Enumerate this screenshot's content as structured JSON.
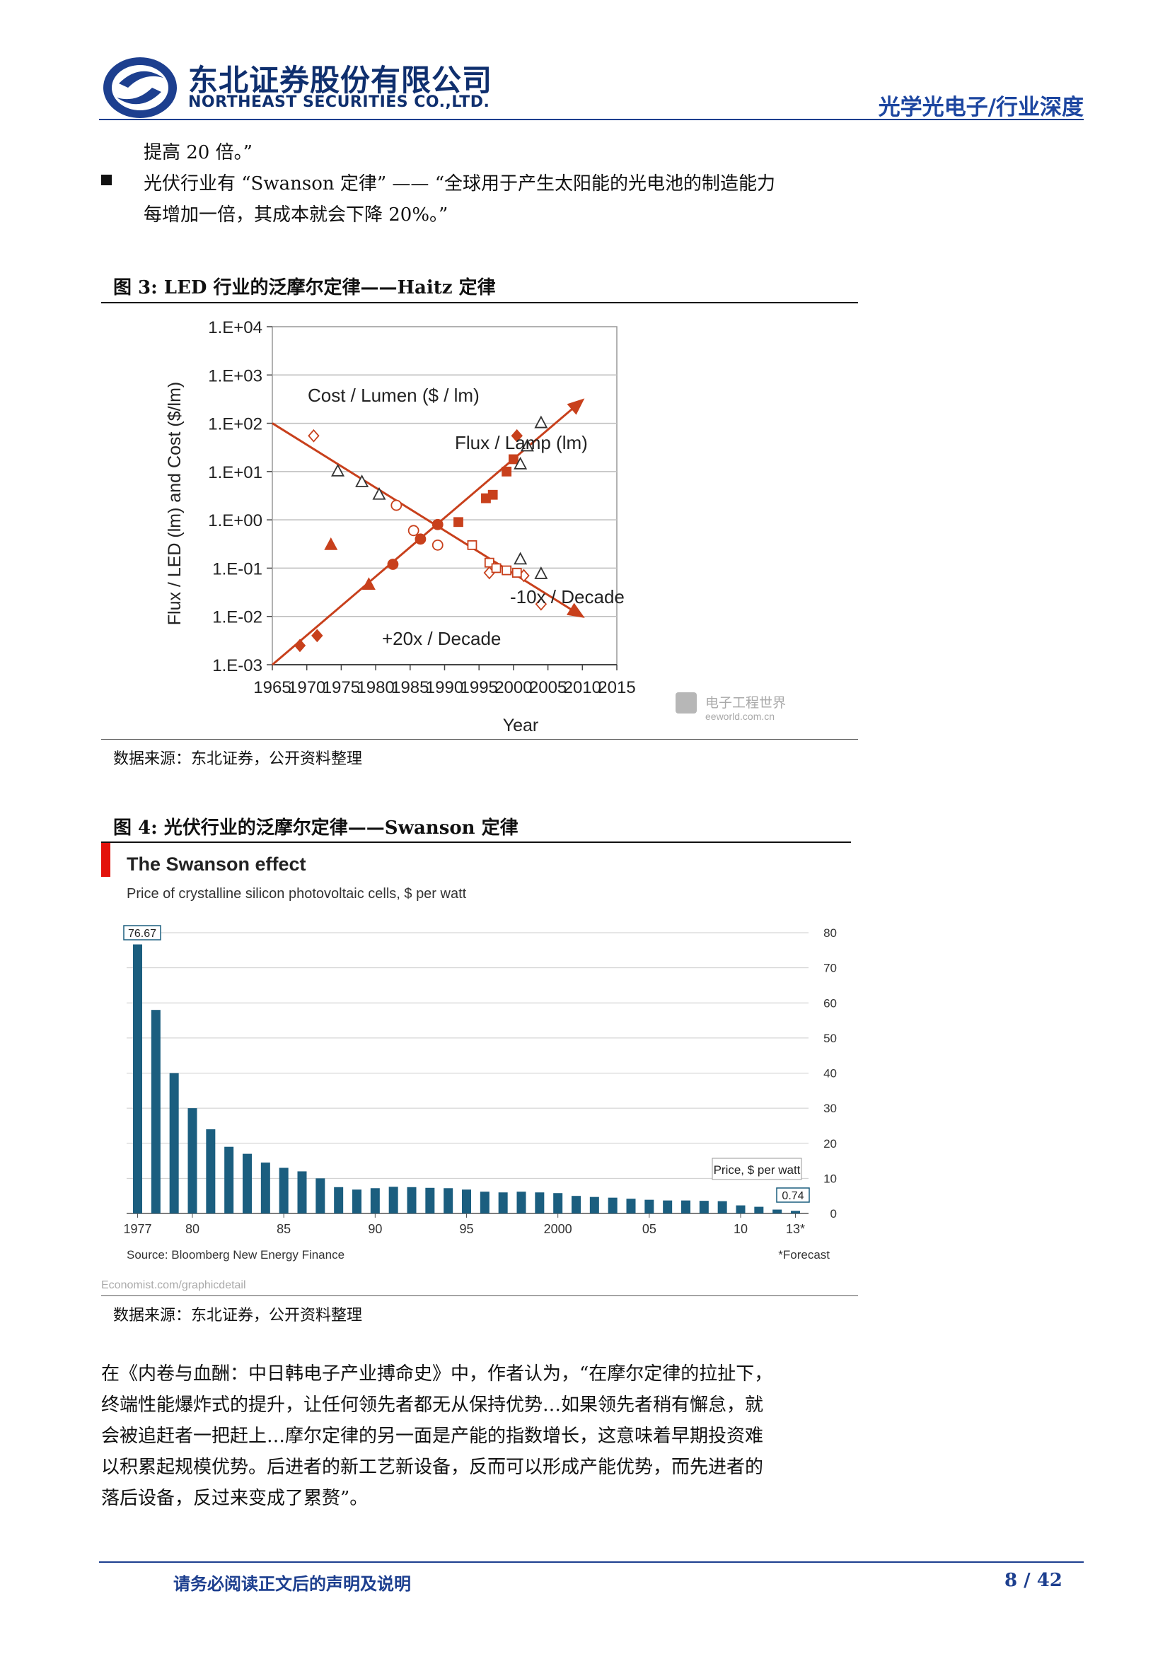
{
  "header": {
    "company_cn": "东北证券股份有限公司",
    "company_en": "NORTHEAST SECURITIES CO.,LTD.",
    "category": "光学光电子/行业深度"
  },
  "intro": {
    "line1": "提高 20 倍。”",
    "bullet_line1": "光伏行业有 “Swanson 定律” —— “全球用于产生太阳能的光电池的制造能力",
    "bullet_line2": "每增加一倍，其成本就会下降 20%。”"
  },
  "figure3": {
    "caption": "图 3:  LED 行业的泛摩尔定律——Haitz 定律",
    "source": "数据来源：东北证券，公开资料整理",
    "watermark_cn": "电子工程世界",
    "watermark_en": "eeworld.com.cn"
  },
  "figure4": {
    "caption": "图 4:  光伏行业的泛摩尔定律——Swanson 定律",
    "source": "数据来源：东北证券，公开资料整理",
    "credit": "Economist.com/graphicdetail"
  },
  "closing": {
    "lines": [
      "在《内卷与血酬：中日韩电子产业搏命史》中，作者认为，“在摩尔定律的拉扯下，",
      "终端性能爆炸式的提升，让任何领先者都无从保持优势…如果领先者稍有懈怠，就",
      "会被追赶者一把赶上…摩尔定律的另一面是产能的指数增长，这意味着早期投资难",
      "以积累起规模优势。后进者的新工艺新设备，反而可以形成产能优势，而先进者的",
      "落后设备，反过来变成了累赘”。"
    ]
  },
  "footer": {
    "notice": "请务必阅读正文后的声明及说明",
    "page": "8 / 42"
  },
  "colors": {
    "brand_blue": "#1d3f8f",
    "trend_red": "#c8401c",
    "bar_blue": "#1b5e7f"
  },
  "chart_data": [
    {
      "type": "scatter",
      "title": "",
      "xlabel": "Year",
      "ylabel": "Flux / LED  (lm) and Cost  ($/lm)",
      "y_scale": "log",
      "xlim": [
        1965,
        2015
      ],
      "ylim": [
        0.001,
        10000
      ],
      "x_ticks": [
        "1965",
        "1970",
        "1975",
        "1980",
        "1985",
        "1990",
        "1995",
        "2000",
        "2005",
        "2010",
        "2015"
      ],
      "y_ticks": [
        "1.E-03",
        "1.E-02",
        "1.E-01",
        "1.E+00",
        "1.E+01",
        "1.E+02",
        "1.E+03",
        "1.E+04"
      ],
      "grid": true,
      "annotations": [
        "Cost / Lumen  ($ / lm)",
        "Flux / Lamp (lm)",
        "-10x / Decade",
        "+20x / Decade"
      ],
      "trend_lines": [
        {
          "points": [
            [
              1965,
              0.001
            ],
            [
              2010,
              300
            ]
          ]
        },
        {
          "points": [
            [
              1965,
              100
            ],
            [
              2010,
              0.01
            ]
          ]
        }
      ],
      "series": [
        {
          "marker": "filled-diamond",
          "points": [
            [
              1969,
              0.0025
            ],
            [
              1971.5,
              0.004
            ],
            [
              2000.5,
              55
            ]
          ]
        },
        {
          "marker": "filled-triangle",
          "points": [
            [
              1973.5,
              0.3
            ],
            [
              1979,
              0.045
            ]
          ]
        },
        {
          "marker": "filled-circle",
          "points": [
            [
              1982.5,
              0.12
            ],
            [
              1986.5,
              0.4
            ],
            [
              1989,
              0.8
            ]
          ]
        },
        {
          "marker": "filled-square",
          "points": [
            [
              1992,
              0.9
            ],
            [
              1996,
              2.8
            ],
            [
              1997,
              3.3
            ],
            [
              1999,
              10
            ],
            [
              2000,
              18
            ]
          ]
        },
        {
          "marker": "open-diamond",
          "points": [
            [
              1971,
              55
            ],
            [
              1996.5,
              0.08
            ],
            [
              2001.5,
              0.07
            ],
            [
              2004,
              0.018
            ]
          ]
        },
        {
          "marker": "open-triangle",
          "points": [
            [
              1974.5,
              10
            ],
            [
              1978,
              6
            ],
            [
              1980.5,
              3.3
            ],
            [
              2001,
              14
            ],
            [
              2002,
              33
            ],
            [
              2004,
              100
            ],
            [
              2001,
              0.15
            ],
            [
              2004,
              0.075
            ]
          ]
        },
        {
          "marker": "open-circle",
          "points": [
            [
              1983,
              2
            ],
            [
              1985.5,
              0.6
            ],
            [
              1989,
              0.3
            ]
          ]
        },
        {
          "marker": "open-square",
          "points": [
            [
              1994,
              0.3
            ],
            [
              1996.5,
              0.13
            ],
            [
              1997.5,
              0.1
            ],
            [
              1999,
              0.09
            ],
            [
              2000.5,
              0.08
            ]
          ]
        }
      ]
    },
    {
      "type": "bar",
      "title": "The Swanson effect",
      "subtitle": "Price of crystalline silicon photovoltaic cells, $ per watt",
      "source_note": "Source: Bloomberg New Energy Finance",
      "forecast_note": "*Forecast",
      "legend_label": "Price, $ per watt",
      "ylim": [
        0,
        80
      ],
      "y_ticks": [
        "0",
        "10",
        "20",
        "30",
        "40",
        "50",
        "60",
        "70",
        "80"
      ],
      "x_tick_labels": [
        {
          "year": 1977,
          "label": "1977"
        },
        {
          "year": 1980,
          "label": "80"
        },
        {
          "year": 1985,
          "label": "85"
        },
        {
          "year": 1990,
          "label": "90"
        },
        {
          "year": 1995,
          "label": "95"
        },
        {
          "year": 2000,
          "label": "2000"
        },
        {
          "year": 2005,
          "label": "05"
        },
        {
          "year": 2010,
          "label": "10"
        },
        {
          "year": 2013,
          "label": "13*"
        }
      ],
      "first_label": "76.67",
      "last_label": "0.74",
      "years": [
        1977,
        1978,
        1979,
        1980,
        1981,
        1982,
        1983,
        1984,
        1985,
        1986,
        1987,
        1988,
        1989,
        1990,
        1991,
        1992,
        1993,
        1994,
        1995,
        1996,
        1997,
        1998,
        1999,
        2000,
        2001,
        2002,
        2003,
        2004,
        2005,
        2006,
        2007,
        2008,
        2009,
        2010,
        2011,
        2012,
        2013
      ],
      "values": [
        76.67,
        58,
        40,
        30,
        24,
        19,
        17,
        14.5,
        13,
        12,
        10,
        7.5,
        6.8,
        7.2,
        7.6,
        7.5,
        7.3,
        7.2,
        6.8,
        6.2,
        6.0,
        6.2,
        6.0,
        5.8,
        5.0,
        4.7,
        4.5,
        4.2,
        3.9,
        3.7,
        3.7,
        3.6,
        3.5,
        2.3,
        1.9,
        1.1,
        0.74
      ]
    }
  ]
}
